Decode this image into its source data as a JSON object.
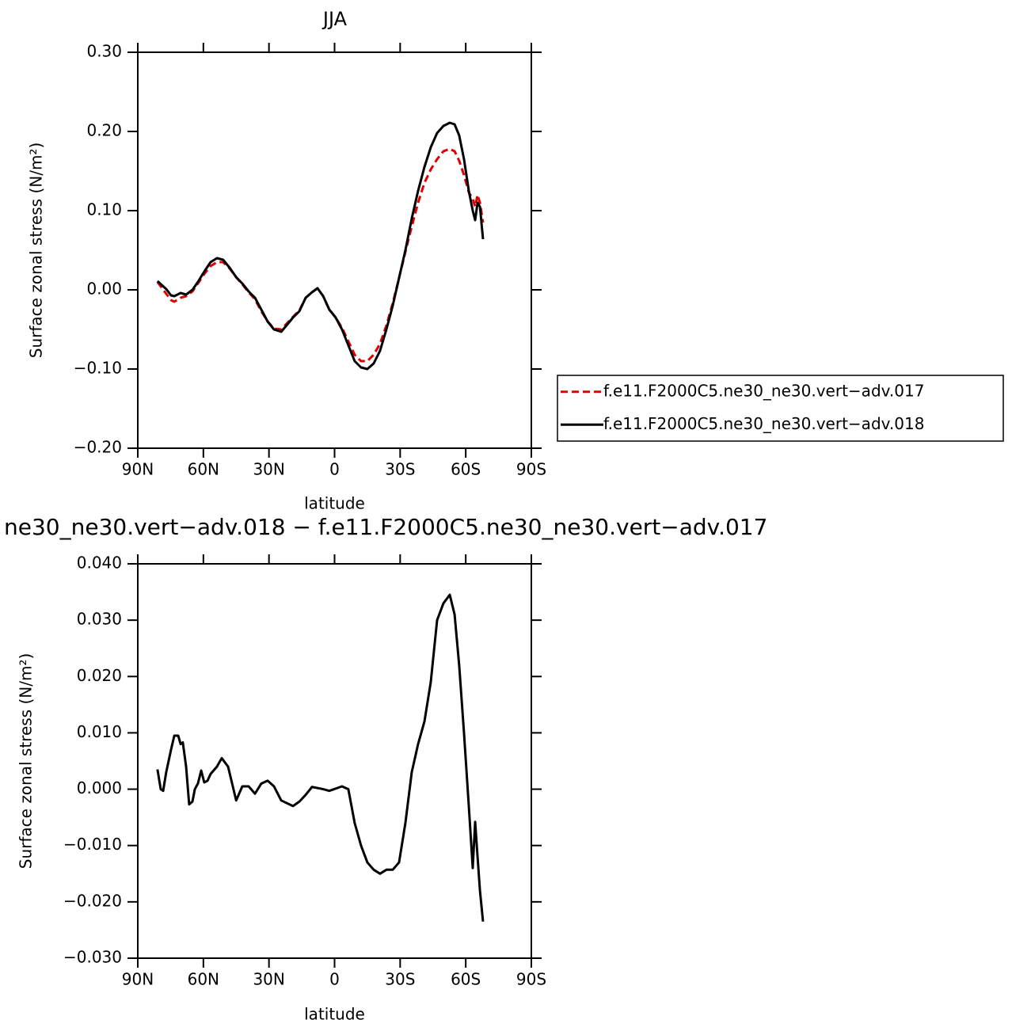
{
  "chart_data": [
    {
      "type": "line",
      "title": "JJA",
      "xlabel": "latitude",
      "ylabel": "Surface zonal stress (N/m²)",
      "xlim": [
        90,
        -90
      ],
      "xticks": [
        {
          "value": 90,
          "label": "90N"
        },
        {
          "value": 60,
          "label": "60N"
        },
        {
          "value": 30,
          "label": "30N"
        },
        0,
        {
          "value": -30,
          "label": "30S"
        },
        {
          "value": -60,
          "label": "60S"
        },
        {
          "value": -90,
          "label": "90S"
        }
      ],
      "ylim": [
        -0.2,
        0.3
      ],
      "yticks": [
        {
          "value": 0.3,
          "label": "0.30"
        },
        {
          "value": 0.2,
          "label": "0.20"
        },
        {
          "value": 0.1,
          "label": "0.10"
        },
        {
          "value": 0,
          "label": "0.00"
        },
        {
          "value": -0.1,
          "label": "−0.10"
        },
        {
          "value": -0.2,
          "label": "−0.20"
        }
      ],
      "legend": "right",
      "x": [
        81,
        77,
        74.8,
        73.3,
        70.4,
        67.9,
        65,
        62.5,
        59.6,
        56.7,
        53.8,
        51,
        48,
        45,
        42.2,
        39.3,
        36.4,
        33.5,
        30.6,
        27.7,
        24.4,
        22,
        19,
        16.1,
        13.2,
        10.3,
        7.8,
        5.2,
        2.4,
        -0.5,
        -3.4,
        -6.3,
        -9.2,
        -12.1,
        -15,
        -17.9,
        -20.8,
        -23.7,
        -26.6,
        -29.5,
        -32.4,
        -35.3,
        -38.2,
        -41.1,
        -44,
        -46.9,
        -49.8,
        -52.7,
        -54.9,
        -57,
        -59.2,
        -61.4,
        -63.2,
        -64.3,
        -65.4,
        -66.5,
        -67.9
      ],
      "series": [
        {
          "name": "f.e11.F2000C5.ne30_ne30.vert−adv.017",
          "color": "#e00000",
          "linestyle": "dashed",
          "values": [
            0.01,
            -0.005,
            -0.013,
            -0.015,
            -0.01,
            -0.008,
            -0.002,
            0.008,
            0.02,
            0.03,
            0.035,
            0.035,
            0.027,
            0.016,
            0.007,
            -0.003,
            -0.012,
            -0.027,
            -0.04,
            -0.049,
            -0.05,
            -0.043,
            -0.034,
            -0.026,
            -0.01,
            -0.003,
            0.002,
            -0.008,
            -0.025,
            -0.035,
            -0.048,
            -0.065,
            -0.082,
            -0.09,
            -0.09,
            -0.082,
            -0.068,
            -0.045,
            -0.017,
            0.015,
            0.048,
            0.08,
            0.11,
            0.135,
            0.152,
            0.165,
            0.175,
            0.178,
            0.175,
            0.163,
            0.145,
            0.123,
            0.115,
            0.105,
            0.12,
            0.11,
            0.085
          ]
        },
        {
          "name": "f.e11.F2000C5.ne30_ne30.vert−adv.018",
          "color": "#000000",
          "linestyle": "solid",
          "values": [
            0.011,
            0.001,
            -0.007,
            -0.008,
            -0.004,
            -0.006,
            0.0,
            0.01,
            0.023,
            0.035,
            0.04,
            0.038,
            0.028,
            0.016,
            0.008,
            -0.002,
            -0.01,
            -0.025,
            -0.04,
            -0.05,
            -0.053,
            -0.045,
            -0.035,
            -0.027,
            -0.01,
            -0.003,
            0.002,
            -0.008,
            -0.025,
            -0.035,
            -0.05,
            -0.07,
            -0.09,
            -0.098,
            -0.1,
            -0.093,
            -0.077,
            -0.05,
            -0.02,
            0.015,
            0.05,
            0.09,
            0.125,
            0.155,
            0.18,
            0.198,
            0.207,
            0.211,
            0.209,
            0.195,
            0.165,
            0.125,
            0.1,
            0.088,
            0.11,
            0.105,
            0.064
          ]
        }
      ]
    },
    {
      "type": "line",
      "title": "ne30_ne30.vert−adv.018 − f.e11.F2000C5.ne30_ne30.vert−adv.017",
      "xlabel": "latitude",
      "ylabel": "Surface zonal stress (N/m²)",
      "xlim": [
        90,
        -90
      ],
      "xticks": [
        {
          "value": 90,
          "label": "90N"
        },
        {
          "value": 60,
          "label": "60N"
        },
        {
          "value": 30,
          "label": "30N"
        },
        0,
        {
          "value": -30,
          "label": "30S"
        },
        {
          "value": -60,
          "label": "60S"
        },
        {
          "value": -90,
          "label": "90S"
        }
      ],
      "ylim": [
        -0.03,
        0.04
      ],
      "yticks": [
        {
          "value": 0.04,
          "label": "0.040"
        },
        {
          "value": 0.03,
          "label": "0.030"
        },
        {
          "value": 0.02,
          "label": "0.020"
        },
        {
          "value": 0.01,
          "label": "0.010"
        },
        {
          "value": 0,
          "label": "0.000"
        },
        {
          "value": -0.01,
          "label": "−0.010"
        },
        {
          "value": -0.02,
          "label": "−0.020"
        },
        {
          "value": -0.03,
          "label": "−0.030"
        }
      ],
      "x": [
        81.0,
        79.5,
        78.4,
        77.0,
        74.8,
        73.3,
        71.5,
        70.4,
        69.4,
        67.9,
        66.5,
        65.0,
        63.9,
        62.5,
        61.0,
        59.6,
        58.1,
        56.7,
        53.8,
        51.6,
        48.7,
        45.0,
        42.2,
        39.3,
        36.4,
        33.5,
        30.6,
        27.7,
        24.4,
        19.0,
        16.1,
        13.2,
        10.3,
        5.2,
        2.4,
        -0.5,
        -3.4,
        -6.3,
        -9.2,
        -12.1,
        -15.0,
        -17.9,
        -20.8,
        -23.7,
        -26.6,
        -29.5,
        -32.4,
        -35.3,
        -38.2,
        -41.1,
        -44.0,
        -46.9,
        -49.8,
        -52.7,
        -54.9,
        -57.0,
        -59.2,
        -61.4,
        -63.2,
        -64.3,
        -65.4,
        -66.5,
        -67.9
      ],
      "series": [
        {
          "color": "#000000",
          "linestyle": "solid",
          "values": [
            0.0035,
            0.0,
            -0.0003,
            0.003,
            0.007,
            0.0095,
            0.0095,
            0.008,
            0.0083,
            0.004,
            -0.0027,
            -0.0022,
            0.0,
            0.001,
            0.0033,
            0.0012,
            0.0015,
            0.0027,
            0.004,
            0.0055,
            0.004,
            -0.002,
            0.0005,
            0.0005,
            -0.0008,
            0.001,
            0.0015,
            0.0005,
            -0.002,
            -0.003,
            -0.0022,
            -0.001,
            0.0004,
            0.0,
            -0.0003,
            0.0001,
            0.0005,
            0.0,
            -0.006,
            -0.01,
            -0.013,
            -0.0143,
            -0.015,
            -0.0143,
            -0.0143,
            -0.013,
            -0.006,
            0.003,
            0.008,
            0.012,
            0.019,
            0.03,
            0.033,
            0.0345,
            0.031,
            0.022,
            0.01,
            -0.003,
            -0.014,
            -0.0058,
            -0.012,
            -0.018,
            -0.0235
          ]
        }
      ]
    }
  ]
}
